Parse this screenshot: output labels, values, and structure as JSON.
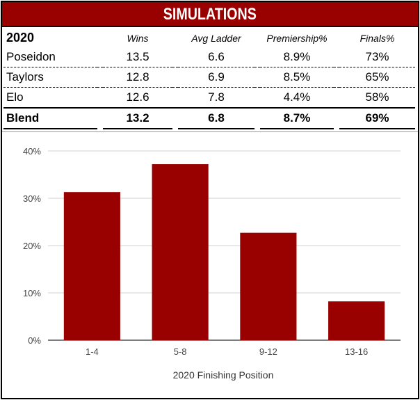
{
  "title": "SIMULATIONS",
  "table": {
    "year": "2020",
    "columns": [
      "Wins",
      "Avg Ladder",
      "Premiership%",
      "Finals%"
    ],
    "rows": [
      {
        "name": "Poseidon",
        "wins": "13.5",
        "avg_ladder": "6.6",
        "premiership": "8.9%",
        "finals": "73%"
      },
      {
        "name": "Taylors",
        "wins": "12.8",
        "avg_ladder": "6.9",
        "premiership": "8.5%",
        "finals": "65%"
      },
      {
        "name": "Elo",
        "wins": "12.6",
        "avg_ladder": "7.8",
        "premiership": "4.4%",
        "finals": "58%"
      }
    ],
    "blend": {
      "name": "Blend",
      "wins": "13.2",
      "avg_ladder": "6.8",
      "premiership": "8.7%",
      "finals": "69%"
    }
  },
  "chart_data": {
    "type": "bar",
    "categories": [
      "1-4",
      "5-8",
      "9-12",
      "13-16"
    ],
    "values": [
      31.3,
      37.2,
      22.7,
      8.2
    ],
    "title": "",
    "xlabel": "2020 Finishing Position",
    "ylabel": "",
    "ylim": [
      0,
      40
    ],
    "yticks": [
      0,
      10,
      20,
      30,
      40
    ],
    "ytick_labels": [
      "0%",
      "10%",
      "20%",
      "30%",
      "40%"
    ],
    "grid": true,
    "bar_color": "#990000"
  },
  "colors": {
    "accent": "#990000"
  }
}
